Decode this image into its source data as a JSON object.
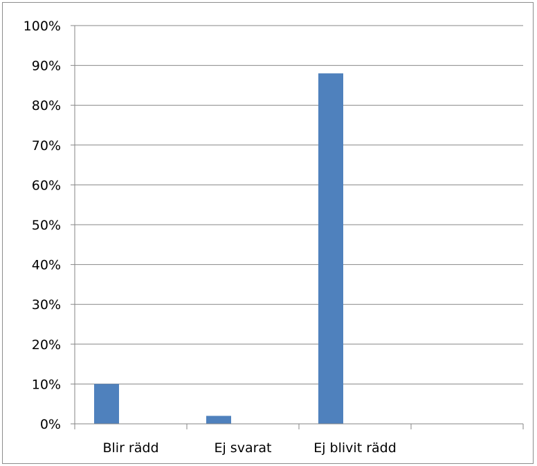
{
  "chart_data": {
    "type": "bar",
    "categories": [
      "Blir rädd",
      "Ej svarat",
      "Ej blivit rädd",
      ""
    ],
    "values": [
      10,
      2,
      88,
      null
    ],
    "value_unit": "%",
    "ylim": [
      0,
      100
    ],
    "y_ticks": [
      "0%",
      "10%",
      "20%",
      "30%",
      "40%",
      "50%",
      "60%",
      "70%",
      "80%",
      "90%",
      "100%"
    ],
    "title": "",
    "xlabel": "",
    "ylabel": "",
    "grid": true,
    "legend": "none",
    "colors": {
      "bar": "#4f81bd",
      "gridline": "#868686",
      "axis": "#868686",
      "border": "#8c8c8c"
    }
  }
}
